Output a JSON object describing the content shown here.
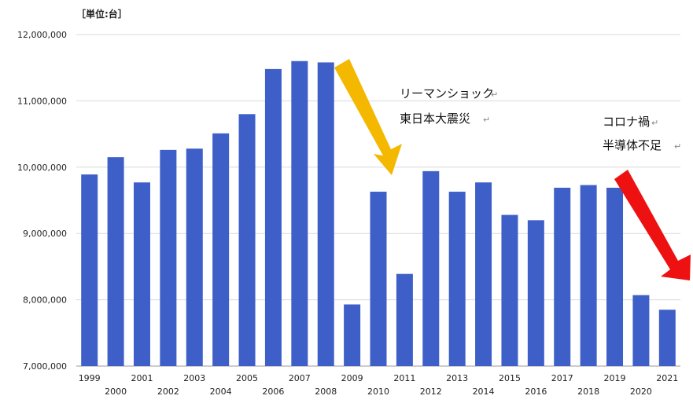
{
  "chart_data": {
    "type": "bar",
    "unit_label": "［単位:台］",
    "categories": [
      "1999",
      "2000",
      "2001",
      "2002",
      "2003",
      "2004",
      "2005",
      "2006",
      "2007",
      "2008",
      "2009",
      "2010",
      "2011",
      "2012",
      "2013",
      "2014",
      "2015",
      "2016",
      "2017",
      "2018",
      "2019",
      "2020",
      "2021"
    ],
    "values": [
      9890000,
      10150000,
      9770000,
      10260000,
      10280000,
      10510000,
      10800000,
      11480000,
      11600000,
      11580000,
      7930000,
      9630000,
      8390000,
      9940000,
      9630000,
      9770000,
      9280000,
      9200000,
      9690000,
      9730000,
      9690000,
      8070000,
      7850000
    ],
    "ylim": [
      7000000,
      12000000
    ],
    "yticks": [
      7000000,
      8000000,
      9000000,
      10000000,
      11000000,
      12000000
    ],
    "ytick_labels": [
      "7,000,000",
      "8,000,000",
      "9,000,000",
      "10,000,000",
      "11,000,000",
      "12,000,000"
    ],
    "grid": true,
    "bar_color": "#3f5fc8",
    "annotations": [
      {
        "lines": [
          "リーマンショック",
          "東日本大震災"
        ],
        "arrow_color": "#f5b800"
      },
      {
        "lines": [
          "コロナ禍",
          "半導体不足"
        ],
        "arrow_color": "#ee1111"
      }
    ]
  }
}
